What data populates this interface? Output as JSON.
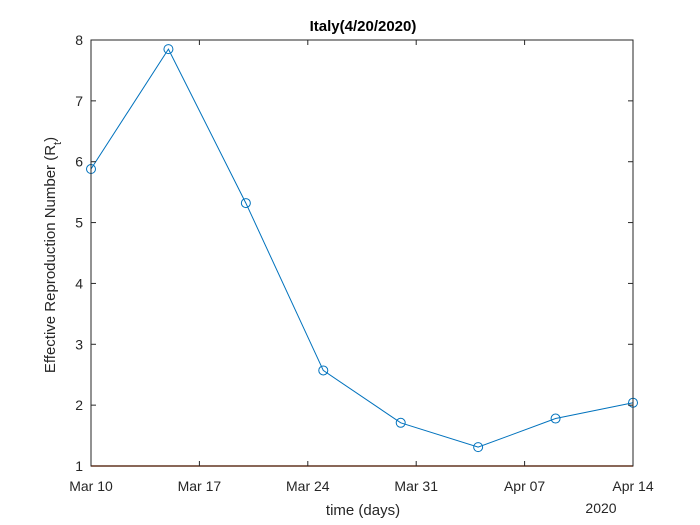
{
  "chart_data": {
    "type": "line",
    "title": "Italy(4/20/2020)",
    "xlabel": "time (days)",
    "ylabel": "Effective Reproduction Number (R",
    "ylabel_subscript": "t",
    "ylabel_close": ")",
    "year_label": "2020",
    "xlim": [
      "2020-03-10",
      "2020-04-14"
    ],
    "ylim": [
      1,
      8
    ],
    "x_ticks": [
      {
        "date": "2020-03-10",
        "label": "Mar 10"
      },
      {
        "date": "2020-03-17",
        "label": "Mar 17"
      },
      {
        "date": "2020-03-24",
        "label": "Mar 24"
      },
      {
        "date": "2020-03-31",
        "label": "Mar 31"
      },
      {
        "date": "2020-04-07",
        "label": "Apr 07"
      },
      {
        "date": "2020-04-14",
        "label": "Apr 14"
      }
    ],
    "y_ticks": [
      1,
      2,
      3,
      4,
      5,
      6,
      7,
      8
    ],
    "grid": false,
    "series": [
      {
        "color": "#0072BD",
        "marker": "circle",
        "points": [
          {
            "x": "2020-03-10",
            "y": 5.88
          },
          {
            "x": "2020-03-15",
            "y": 7.85
          },
          {
            "x": "2020-03-20",
            "y": 5.32
          },
          {
            "x": "2020-03-25",
            "y": 2.57
          },
          {
            "x": "2020-03-30",
            "y": 1.71
          },
          {
            "x": "2020-04-04",
            "y": 1.31
          },
          {
            "x": "2020-04-09",
            "y": 1.78
          },
          {
            "x": "2020-04-14",
            "y": 2.04
          }
        ]
      }
    ],
    "reference_line": {
      "y": 1,
      "color": "#D95319"
    }
  }
}
